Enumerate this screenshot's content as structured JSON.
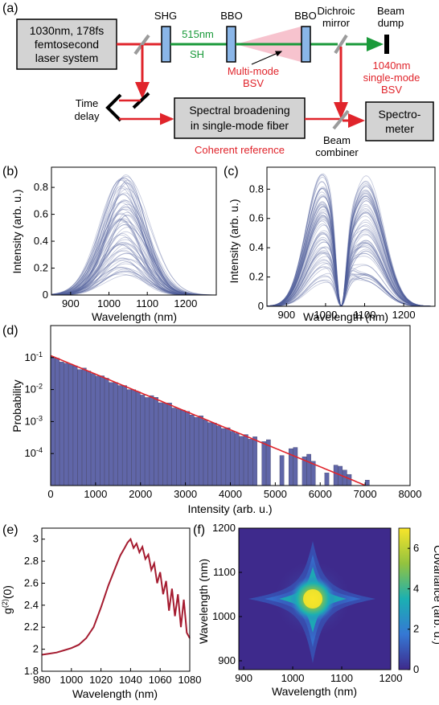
{
  "panels": {
    "a": "(a)",
    "b": "(b)",
    "c": "(c)",
    "d": "(d)",
    "e": "(e)",
    "f": "(f)"
  },
  "setup": {
    "laser_line1": "1030nm, 178fs",
    "laser_line2": "femtosecond",
    "laser_line3": "laser system",
    "shg": "SHG",
    "bbo1": "BBO",
    "bbo2": "BBO",
    "dichroic1": "Dichroic",
    "dichroic2": "mirror",
    "dump1": "Beam",
    "dump2": "dump",
    "wl515": "515nm",
    "sh": "SH",
    "mm1": "Multi-mode",
    "mm2": "BSV",
    "sm1": "1040nm",
    "sm2": "single-mode",
    "sm3": "BSV",
    "td1": "Time",
    "td2": "delay",
    "spec1": "Spectral broadening",
    "spec2": "in single-mode fiber",
    "coh": "Coherent reference",
    "bc1": "Beam",
    "bc2": "combiner",
    "sp1": "Spectro-",
    "sp2": "meter"
  },
  "colors": {
    "red": "#e0242b",
    "green": "#1a9a3a",
    "blue": "#8ab6e8",
    "spectra": "#4f5e9b",
    "hist": "#6066a8",
    "g2": "#a51c30",
    "pink": "#f6b8c6"
  },
  "chart_data": [
    {
      "id": "b",
      "type": "line",
      "xlabel": "Wavelength (nm)",
      "ylabel": "Intensity (arb. u.)",
      "xlim": [
        850,
        1280
      ],
      "ylim": [
        0,
        0.95
      ],
      "xticks": [
        900,
        1000,
        1100,
        1200
      ],
      "yticks": [
        0,
        0.2,
        0.4,
        0.6,
        0.8
      ],
      "envelope": {
        "shape": "gaussian",
        "center": 1040,
        "width_sigma": 55,
        "peak_max": 0.9
      }
    },
    {
      "id": "c",
      "type": "line",
      "xlabel": "Wavelength (nm)",
      "ylabel": "Intensity (arb. u.)",
      "xlim": [
        850,
        1280
      ],
      "ylim": [
        0,
        0.95
      ],
      "xticks": [
        900,
        1000,
        1100,
        1200
      ],
      "yticks": [
        0,
        0.2,
        0.4,
        0.6,
        0.8
      ],
      "envelope": {
        "shape": "double-peak",
        "peak1_center": 990,
        "peak2_center": 1105,
        "width_sigma": 40,
        "dip": 1040,
        "peak_max": 0.9
      }
    },
    {
      "id": "d",
      "type": "bar",
      "xlabel": "Intensity (arb. u.)",
      "ylabel": "Probability",
      "xlim": [
        0,
        8000
      ],
      "log_y": true,
      "ylim": [
        1e-05,
        1
      ],
      "xticks": [
        0,
        1000,
        2000,
        3000,
        4000,
        5000,
        6000,
        7000,
        8000
      ],
      "ytick_labels": [
        "10-1",
        "10-2",
        "10-3",
        "10-4"
      ],
      "ytick_values": [
        0.1,
        0.01,
        0.001,
        0.0001
      ],
      "bin_width": 100,
      "fit": {
        "type": "exponential",
        "start": 0.115,
        "scale": 750
      }
    },
    {
      "id": "e",
      "type": "line",
      "xlabel": "Wavelength (nm)",
      "ylabel": "g(2)(0)",
      "xlim": [
        980,
        1080
      ],
      "ylim": [
        1.8,
        3.1
      ],
      "xticks": [
        980,
        1000,
        1020,
        1040,
        1060,
        1080
      ],
      "yticks": [
        1.8,
        2,
        2.2,
        2.4,
        2.6,
        2.8,
        3
      ],
      "x": [
        980,
        985,
        990,
        995,
        1000,
        1005,
        1010,
        1015,
        1020,
        1025,
        1030,
        1033,
        1036,
        1038,
        1040,
        1042,
        1044,
        1046,
        1048,
        1050,
        1052,
        1054,
        1056,
        1058,
        1060,
        1062,
        1064,
        1066,
        1068,
        1070,
        1072,
        1074,
        1076,
        1078,
        1080
      ],
      "y": [
        1.95,
        1.96,
        1.97,
        1.99,
        2.01,
        2.04,
        2.1,
        2.2,
        2.38,
        2.58,
        2.75,
        2.85,
        2.92,
        2.97,
        3.0,
        2.92,
        2.96,
        2.88,
        2.93,
        2.82,
        2.86,
        2.72,
        2.78,
        2.6,
        2.7,
        2.5,
        2.62,
        2.35,
        2.55,
        2.3,
        2.5,
        2.2,
        2.45,
        2.15,
        2.1
      ]
    },
    {
      "id": "f",
      "type": "heatmap",
      "xlabel": "Wavelength (nm)",
      "ylabel": "Wavelength (nm)",
      "xlim": [
        890,
        1200
      ],
      "ylim": [
        880,
        1200
      ],
      "xticks": [
        900,
        1000,
        1100,
        1200
      ],
      "yticks": [
        900,
        1000,
        1100,
        1200
      ],
      "colorbar_label": "Covariance (arb. u.)",
      "colorbar_range": [
        0,
        7
      ],
      "colorbar_ticks": [
        0,
        2,
        4,
        6
      ],
      "peak_center": [
        1040,
        1040
      ],
      "peak_value": 7
    }
  ]
}
